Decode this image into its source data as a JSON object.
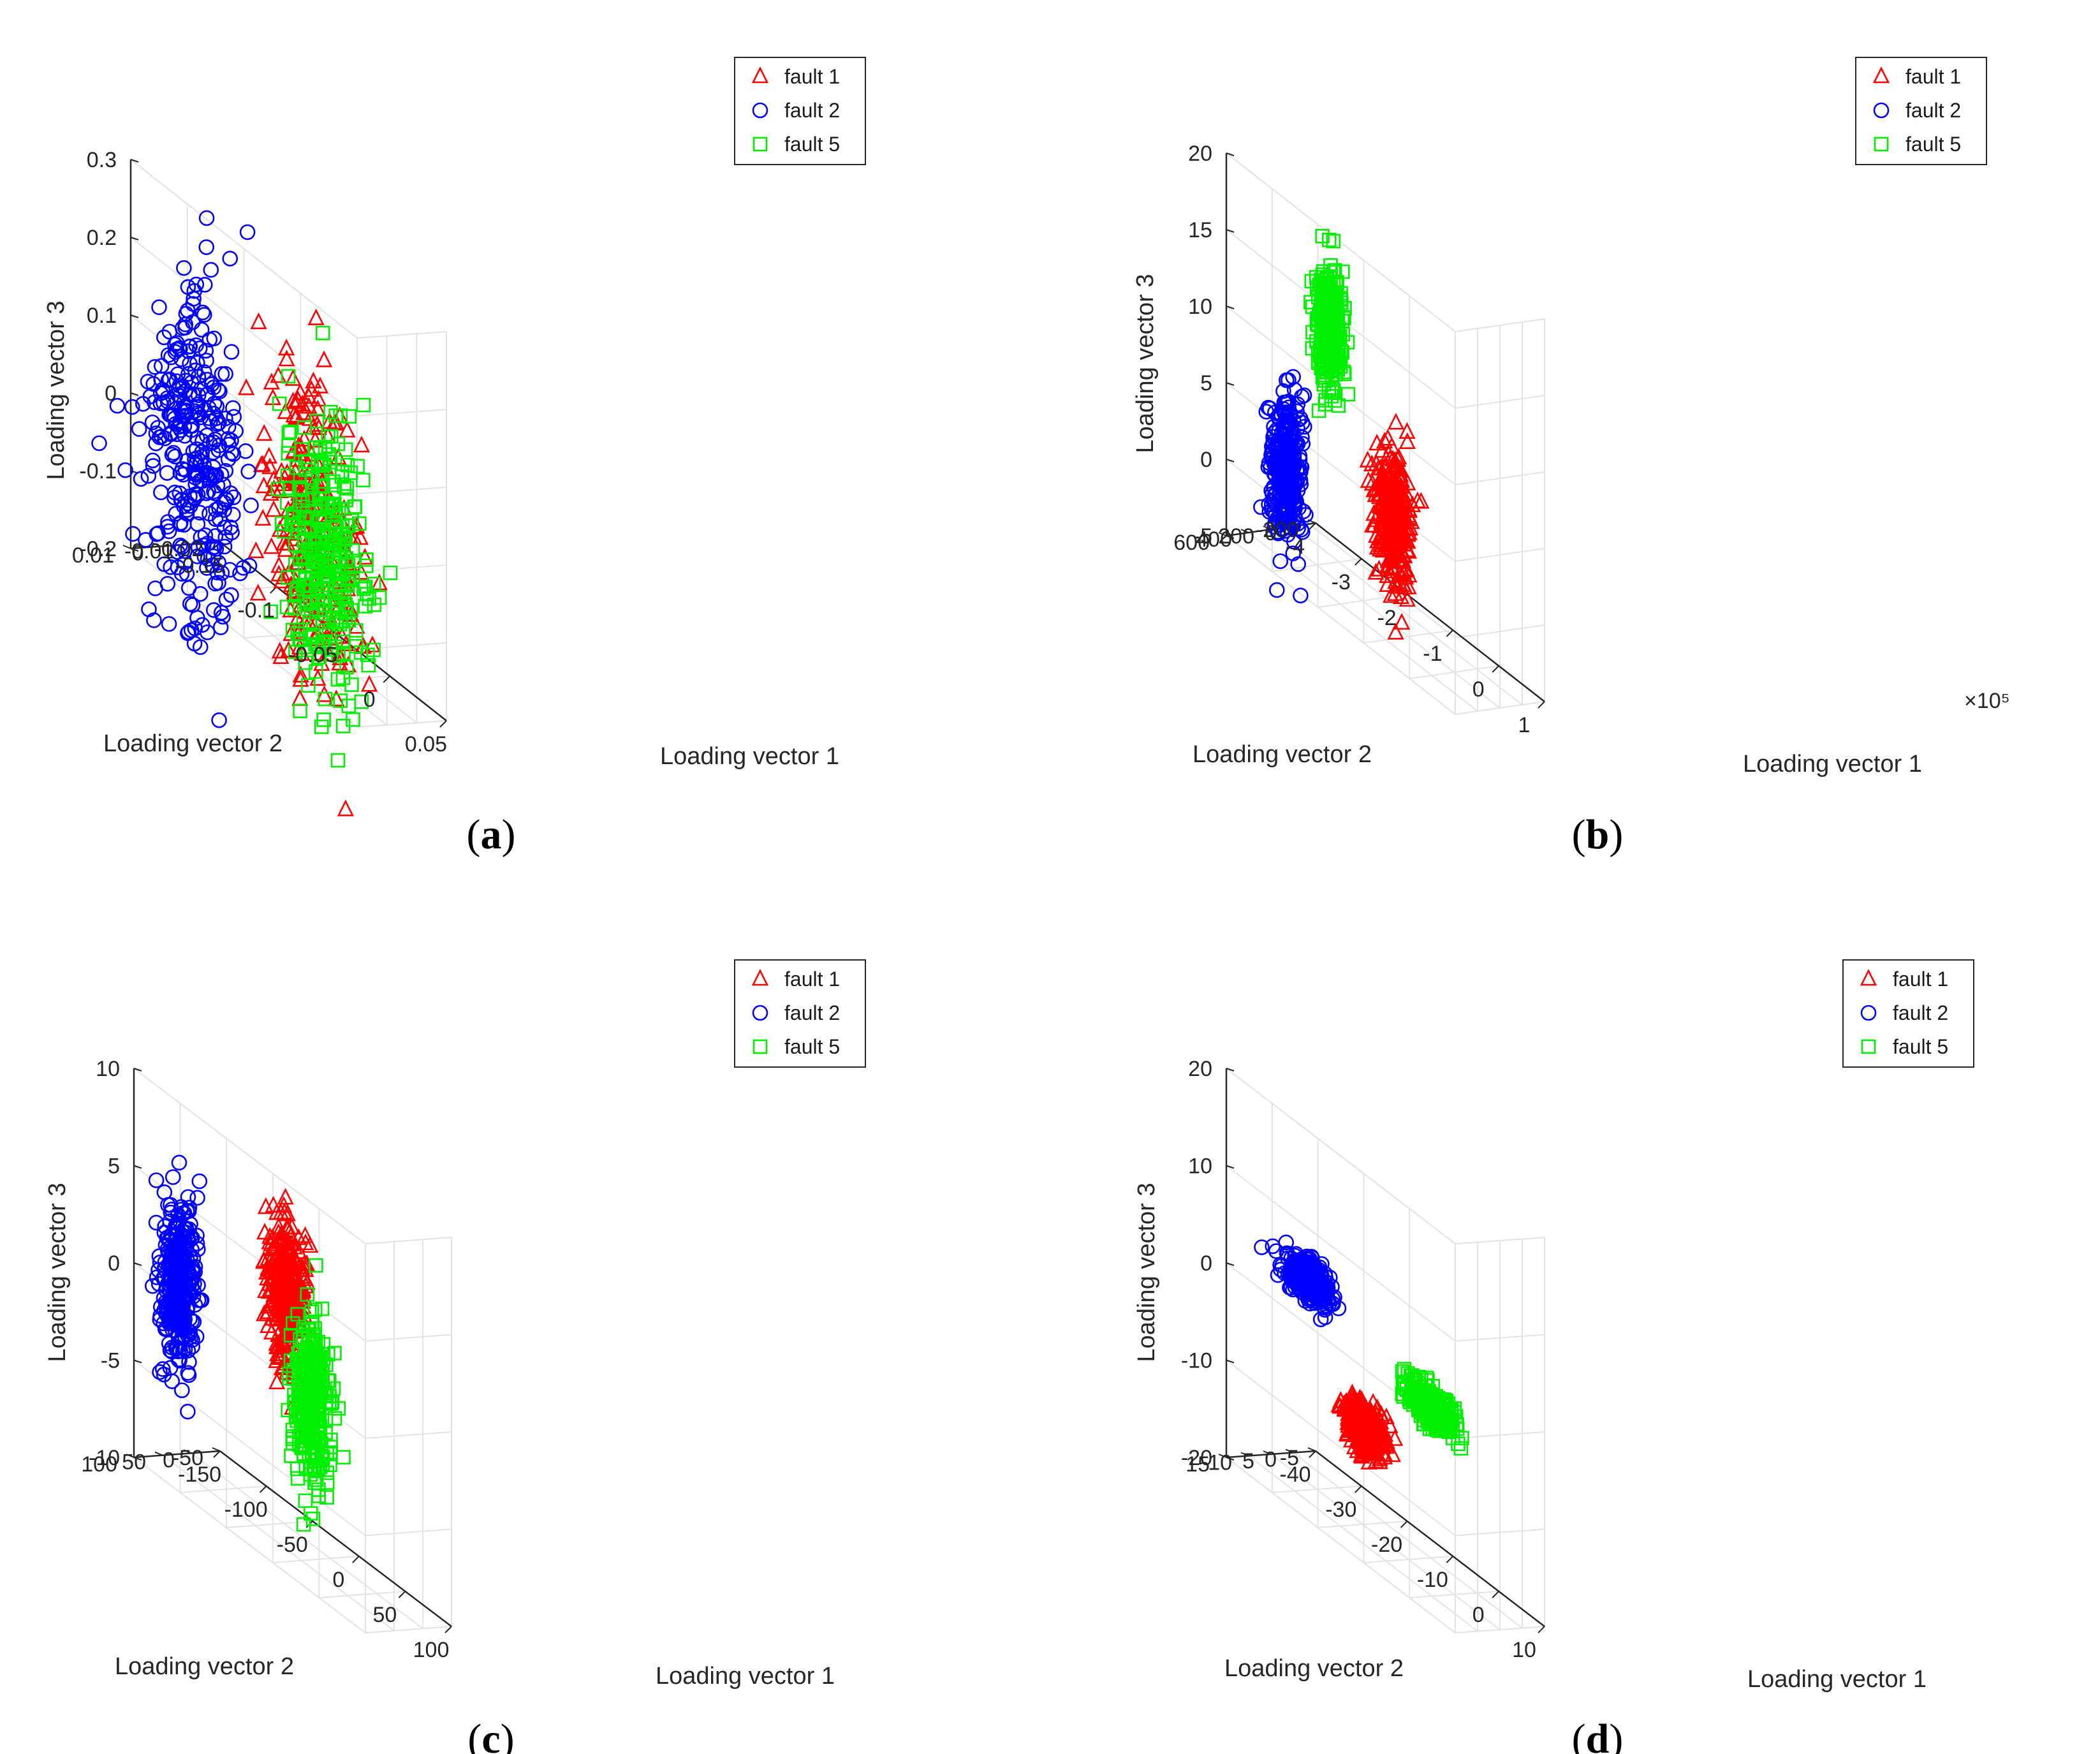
{
  "colors": {
    "fault1": "#ff0000",
    "fault2": "#0000ff",
    "fault5": "#00ee00"
  },
  "chart_data": [
    {
      "type": "scatter",
      "caption": "a",
      "xlabel": "Loading vector 1",
      "ylabel": "Loading vector 2",
      "zlabel": "Loading vector 3",
      "xticks": [
        "-0.15",
        "-0.1",
        "-0.05",
        "0",
        "0.05"
      ],
      "yticks": [
        "-0.02",
        "-0.01",
        "0",
        "0.01"
      ],
      "zticks": [
        "-0.2",
        "-0.1",
        "0",
        "0.1",
        "0.2",
        "0.3"
      ],
      "xlim": [
        -0.15,
        0.05
      ],
      "ylim": [
        -0.02,
        0.01
      ],
      "zlim": [
        -0.2,
        0.3
      ],
      "exponent": "",
      "legend": [
        "fault 1",
        "fault 2",
        "fault 5"
      ],
      "series": [
        {
          "name": "fault 1",
          "marker": "triangle",
          "x_center": 0.0,
          "y_center": 0.007,
          "z_center": 0.0,
          "x_spread": 0.02,
          "y_spread": 0.003,
          "z_spread": 0.09,
          "n": 260
        },
        {
          "name": "fault 2",
          "marker": "circle",
          "x_center": -0.115,
          "y_center": 0.002,
          "z_center": -0.05,
          "x_spread": 0.02,
          "y_spread": 0.003,
          "z_spread": 0.11,
          "n": 320
        },
        {
          "name": "fault 5",
          "marker": "square",
          "x_center": 0.005,
          "y_center": 0.003,
          "z_center": -0.03,
          "x_spread": 0.018,
          "y_spread": 0.003,
          "z_spread": 0.09,
          "n": 300
        }
      ]
    },
    {
      "type": "scatter",
      "caption": "b",
      "xlabel": "Loading vector 1",
      "ylabel": "Loading vector 2",
      "zlabel": "Loading vector 3",
      "xticks": [
        "-4",
        "-3",
        "-2",
        "-1",
        "0",
        "1"
      ],
      "yticks": [
        "-200",
        "0",
        "200",
        "400",
        "600"
      ],
      "zticks": [
        "-5",
        "0",
        "5",
        "10",
        "15",
        "20"
      ],
      "xlim": [
        -4,
        1
      ],
      "ylim": [
        -200,
        600
      ],
      "zlim": [
        -5,
        20
      ],
      "exponent": "×10⁵",
      "legend": [
        "fault 1",
        "fault 2",
        "fault 5"
      ],
      "series": [
        {
          "name": "fault 1",
          "marker": "triangle",
          "x_center": -0.6,
          "y_center": 500,
          "z_center": 4.0,
          "x_spread": 0.18,
          "y_spread": 40,
          "z_spread": 2.3,
          "n": 300
        },
        {
          "name": "fault 2",
          "marker": "circle",
          "x_center": -3.5,
          "y_center": 280,
          "z_center": 0.0,
          "x_spread": 0.15,
          "y_spread": 40,
          "z_spread": 2.4,
          "n": 320
        },
        {
          "name": "fault 5",
          "marker": "square",
          "x_center": -1.8,
          "y_center": 580,
          "z_center": 14.0,
          "x_spread": 0.15,
          "y_spread": 20,
          "z_spread": 2.0,
          "n": 300
        }
      ]
    },
    {
      "type": "scatter",
      "caption": "c",
      "xlabel": "Loading vector 1",
      "ylabel": "Loading vector 2",
      "zlabel": "Loading vector 3",
      "xticks": [
        "-150",
        "-100",
        "-50",
        "0",
        "50",
        "100"
      ],
      "yticks": [
        "-50",
        "0",
        "50",
        "100"
      ],
      "zticks": [
        "-10",
        "-5",
        "0",
        "5",
        "10"
      ],
      "xlim": [
        -150,
        100
      ],
      "ylim": [
        -50,
        100
      ],
      "zlim": [
        -10,
        10
      ],
      "exponent": "",
      "legend": [
        "fault 1",
        "fault 2",
        "fault 5"
      ],
      "series": [
        {
          "name": "fault 1",
          "marker": "triangle",
          "x_center": -35,
          "y_center": 20,
          "z_center": 2.5,
          "x_spread": 10,
          "y_spread": 8,
          "z_spread": 1.8,
          "n": 320
        },
        {
          "name": "fault 2",
          "marker": "circle",
          "x_center": -130,
          "y_center": 55,
          "z_center": -0.3,
          "x_spread": 8,
          "y_spread": 10,
          "z_spread": 2.2,
          "n": 320
        },
        {
          "name": "fault 5",
          "marker": "square",
          "x_center": -15,
          "y_center": 10,
          "z_center": -2.5,
          "x_spread": 9,
          "y_spread": 8,
          "z_spread": 2.2,
          "n": 300
        }
      ]
    },
    {
      "type": "scatter",
      "caption": "d",
      "xlabel": "Loading vector 1",
      "ylabel": "Loading vector 2",
      "zlabel": "Loading vector 3",
      "xticks": [
        "-40",
        "-30",
        "-20",
        "-10",
        "0",
        "10"
      ],
      "yticks": [
        "-5",
        "0",
        "5",
        "10",
        "15"
      ],
      "zticks": [
        "-20",
        "-10",
        "0",
        "10",
        "20"
      ],
      "xlim": [
        -40,
        10
      ],
      "ylim": [
        -5,
        15
      ],
      "zlim": [
        -20,
        20
      ],
      "exponent": "",
      "legend": [
        "fault 1",
        "fault 2",
        "fault 5"
      ],
      "series": [
        {
          "name": "fault 1",
          "marker": "triangle",
          "x_center": -25,
          "y_center": -0.5,
          "z_center": -12,
          "x_spread": 2.2,
          "y_spread": 0.8,
          "z_spread": 1.2,
          "n": 320
        },
        {
          "name": "fault 2",
          "marker": "circle",
          "x_center": -30,
          "y_center": 7,
          "z_center": 1.5,
          "x_spread": 2.5,
          "y_spread": 0.8,
          "z_spread": 1.0,
          "n": 320
        },
        {
          "name": "fault 5",
          "marker": "square",
          "x_center": -5,
          "y_center": 5,
          "z_center": -2.5,
          "x_spread": 2.6,
          "y_spread": 0.8,
          "z_spread": 1.0,
          "n": 300
        }
      ]
    }
  ]
}
